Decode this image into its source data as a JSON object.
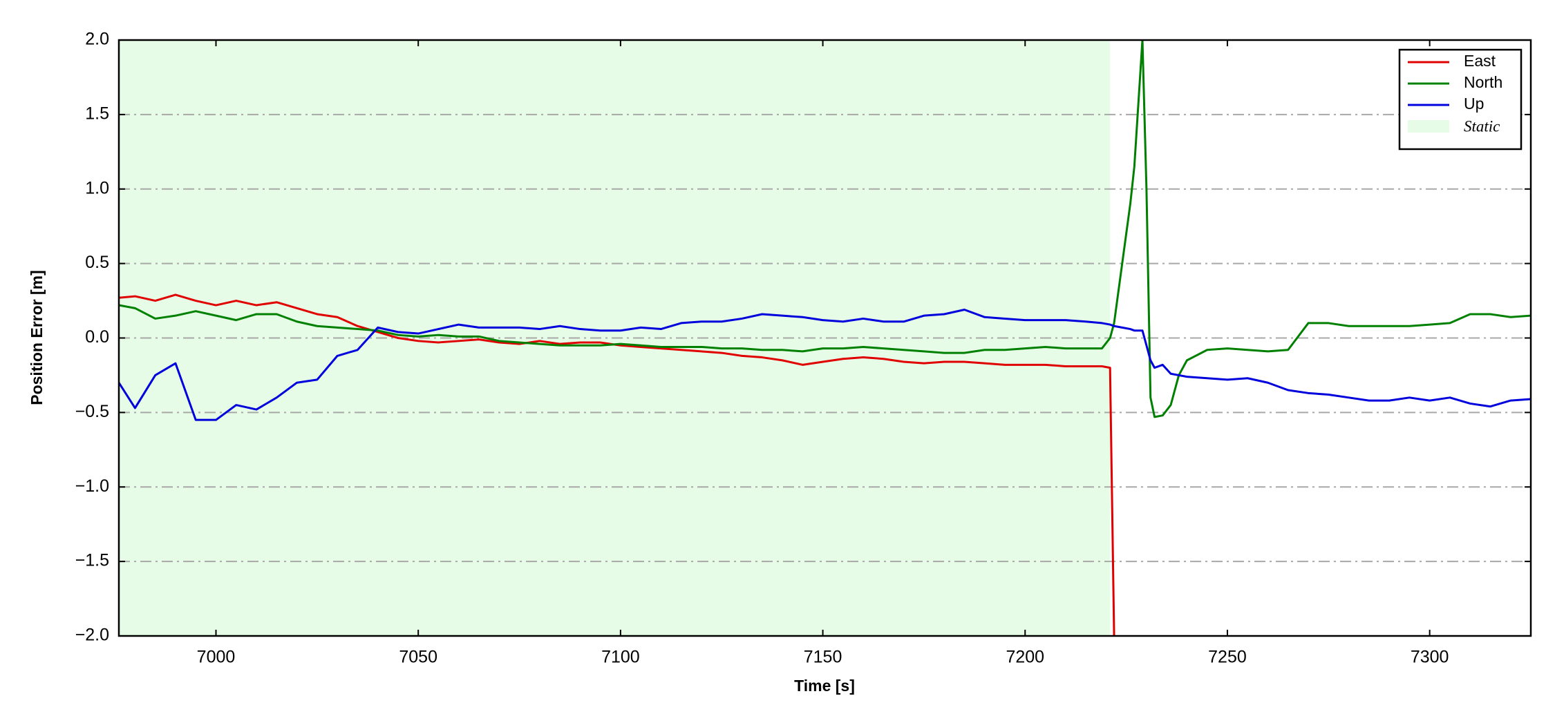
{
  "chart_data": {
    "type": "line",
    "xlabel": "Time [s]",
    "ylabel": "Position Error [m]",
    "xlim": [
      6976,
      7325
    ],
    "ylim": [
      -2,
      2
    ],
    "xticks": [
      7000,
      7050,
      7100,
      7150,
      7200,
      7250,
      7300
    ],
    "yticks": [
      {
        "value": -2,
        "label": "−2.0"
      },
      {
        "value": -1.5,
        "label": "−1.5"
      },
      {
        "value": -1,
        "label": "−1.0"
      },
      {
        "value": -0.5,
        "label": "−0.5"
      },
      {
        "value": 0,
        "label": "0.0"
      },
      {
        "value": 0.5,
        "label": "0.5"
      },
      {
        "value": 1,
        "label": "1.0"
      },
      {
        "value": 1.5,
        "label": "1.5"
      },
      {
        "value": 2,
        "label": "2.0"
      }
    ],
    "grid": true,
    "legend": "upper right",
    "shaded": {
      "name": "Static",
      "xstart": 6976,
      "xend": 7221,
      "color": "#e6fce6"
    },
    "x": [
      6976,
      6980,
      6985,
      6990,
      6995,
      7000,
      7005,
      7010,
      7015,
      7020,
      7025,
      7030,
      7035,
      7040,
      7045,
      7050,
      7055,
      7060,
      7065,
      7070,
      7075,
      7080,
      7085,
      7090,
      7095,
      7100,
      7105,
      7110,
      7115,
      7120,
      7125,
      7130,
      7135,
      7140,
      7145,
      7150,
      7155,
      7160,
      7165,
      7170,
      7175,
      7180,
      7185,
      7190,
      7195,
      7200,
      7205,
      7210,
      7215,
      7219,
      7221,
      7222,
      7224,
      7226,
      7227,
      7229,
      7230,
      7231,
      7232,
      7234,
      7236,
      7238,
      7240,
      7245,
      7250,
      7255,
      7260,
      7265,
      7270,
      7275,
      7280,
      7285,
      7290,
      7295,
      7300,
      7305,
      7310,
      7315,
      7320,
      7325
    ],
    "series": [
      {
        "name": "East",
        "color": "#e00000",
        "values": [
          0.27,
          0.28,
          0.25,
          0.29,
          0.25,
          0.22,
          0.25,
          0.22,
          0.24,
          0.2,
          0.16,
          0.14,
          0.08,
          0.04,
          0.0,
          -0.02,
          -0.03,
          -0.02,
          -0.01,
          -0.03,
          -0.04,
          -0.02,
          -0.04,
          -0.03,
          -0.03,
          -0.05,
          -0.06,
          -0.07,
          -0.08,
          -0.09,
          -0.1,
          -0.12,
          -0.13,
          -0.15,
          -0.18,
          -0.16,
          -0.14,
          -0.13,
          -0.14,
          -0.16,
          -0.17,
          -0.16,
          -0.16,
          -0.17,
          -0.18,
          -0.18,
          -0.18,
          -0.19,
          -0.19,
          -0.19,
          -0.2,
          -2.0,
          null,
          null,
          null,
          null,
          null,
          null,
          null,
          null,
          null,
          null,
          null,
          null,
          null,
          null,
          null,
          null,
          null,
          null,
          null,
          null,
          null,
          null,
          null,
          null,
          null,
          null,
          null,
          null
        ]
      },
      {
        "name": "North",
        "color": "#008000",
        "values": [
          0.22,
          0.2,
          0.13,
          0.15,
          0.18,
          0.15,
          0.12,
          0.16,
          0.16,
          0.11,
          0.08,
          0.07,
          0.06,
          0.05,
          0.02,
          0.01,
          0.02,
          0.01,
          0.01,
          -0.02,
          -0.03,
          -0.04,
          -0.05,
          -0.05,
          -0.05,
          -0.04,
          -0.05,
          -0.06,
          -0.06,
          -0.06,
          -0.07,
          -0.07,
          -0.08,
          -0.08,
          -0.09,
          -0.07,
          -0.07,
          -0.06,
          -0.07,
          -0.08,
          -0.09,
          -0.1,
          -0.1,
          -0.08,
          -0.08,
          -0.07,
          -0.06,
          -0.07,
          -0.07,
          -0.07,
          0.0,
          0.1,
          0.5,
          0.9,
          1.15,
          2.0,
          1.0,
          -0.4,
          -0.53,
          -0.52,
          -0.45,
          -0.25,
          -0.15,
          -0.08,
          -0.07,
          -0.08,
          -0.09,
          -0.08,
          0.1,
          0.1,
          0.08,
          0.08,
          0.08,
          0.08,
          0.09,
          0.1,
          0.16,
          0.16,
          0.14,
          0.15
        ]
      },
      {
        "name": "Up",
        "color": "#0000dd",
        "values": [
          -0.3,
          -0.47,
          -0.25,
          -0.17,
          -0.55,
          -0.55,
          -0.45,
          -0.48,
          -0.4,
          -0.3,
          -0.28,
          -0.12,
          -0.08,
          0.07,
          0.04,
          0.03,
          0.06,
          0.09,
          0.07,
          0.07,
          0.07,
          0.06,
          0.08,
          0.06,
          0.05,
          0.05,
          0.07,
          0.06,
          0.1,
          0.11,
          0.11,
          0.13,
          0.16,
          0.15,
          0.14,
          0.12,
          0.11,
          0.13,
          0.11,
          0.11,
          0.15,
          0.16,
          0.19,
          0.14,
          0.13,
          0.12,
          0.12,
          0.12,
          0.11,
          0.1,
          0.09,
          0.08,
          0.07,
          0.06,
          0.05,
          0.05,
          -0.05,
          -0.15,
          -0.2,
          -0.18,
          -0.24,
          -0.25,
          -0.26,
          -0.27,
          -0.28,
          -0.27,
          -0.3,
          -0.35,
          -0.37,
          -0.38,
          -0.4,
          -0.42,
          -0.42,
          -0.4,
          -0.42,
          -0.4,
          -0.44,
          -0.46,
          -0.42,
          -0.41
        ]
      }
    ]
  }
}
